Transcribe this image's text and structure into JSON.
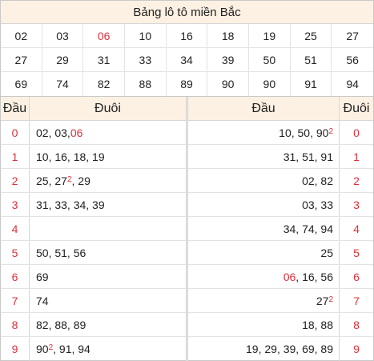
{
  "title": "Bảng lô tô miền Bắc",
  "numbers": [
    {
      "v": "02"
    },
    {
      "v": "03"
    },
    {
      "v": "06",
      "hl": true
    },
    {
      "v": "10"
    },
    {
      "v": "16"
    },
    {
      "v": "18"
    },
    {
      "v": "19"
    },
    {
      "v": "25"
    },
    {
      "v": "27"
    },
    {
      "v": "27"
    },
    {
      "v": "29"
    },
    {
      "v": "31"
    },
    {
      "v": "33"
    },
    {
      "v": "34"
    },
    {
      "v": "39"
    },
    {
      "v": "50"
    },
    {
      "v": "51"
    },
    {
      "v": "56"
    },
    {
      "v": "69"
    },
    {
      "v": "74"
    },
    {
      "v": "82"
    },
    {
      "v": "88"
    },
    {
      "v": "89"
    },
    {
      "v": "90"
    },
    {
      "v": "90"
    },
    {
      "v": "91"
    },
    {
      "v": "94"
    }
  ],
  "left_table": {
    "head_label": "Đầu",
    "tail_label": "Đuôi",
    "rows": [
      {
        "head": "0",
        "tail": [
          {
            "t": "02, 03, "
          },
          {
            "t": "06",
            "red": true
          }
        ]
      },
      {
        "head": "1",
        "tail": [
          {
            "t": "10, 16, 18, 19"
          }
        ]
      },
      {
        "head": "2",
        "tail": [
          {
            "t": "25, 27"
          },
          {
            "sup": "2"
          },
          {
            "t": ", 29"
          }
        ]
      },
      {
        "head": "3",
        "tail": [
          {
            "t": "31, 33, 34, 39"
          }
        ]
      },
      {
        "head": "4",
        "tail": []
      },
      {
        "head": "5",
        "tail": [
          {
            "t": "50, 51, 56"
          }
        ]
      },
      {
        "head": "6",
        "tail": [
          {
            "t": "69"
          }
        ]
      },
      {
        "head": "7",
        "tail": [
          {
            "t": "74"
          }
        ]
      },
      {
        "head": "8",
        "tail": [
          {
            "t": "82, 88, 89"
          }
        ]
      },
      {
        "head": "9",
        "tail": [
          {
            "t": "90"
          },
          {
            "sup": "2"
          },
          {
            "t": ", 91, 94"
          }
        ]
      }
    ]
  },
  "right_table": {
    "head_label": "Đầu",
    "tail_label": "Đuôi",
    "rows": [
      {
        "tail": "0",
        "head": [
          {
            "t": "10, 50, 90"
          },
          {
            "sup": "2"
          }
        ]
      },
      {
        "tail": "1",
        "head": [
          {
            "t": "31, 51, 91"
          }
        ]
      },
      {
        "tail": "2",
        "head": [
          {
            "t": "02, 82"
          }
        ]
      },
      {
        "tail": "3",
        "head": [
          {
            "t": "03, 33"
          }
        ]
      },
      {
        "tail": "4",
        "head": [
          {
            "t": "34, 74, 94"
          }
        ]
      },
      {
        "tail": "5",
        "head": [
          {
            "t": "25"
          }
        ]
      },
      {
        "tail": "6",
        "head": [
          {
            "t": "06",
            "red": true
          },
          {
            "t": ", 16, 56"
          }
        ]
      },
      {
        "tail": "7",
        "head": [
          {
            "t": "27"
          },
          {
            "sup": "2"
          }
        ]
      },
      {
        "tail": "8",
        "head": [
          {
            "t": "18, 88"
          }
        ]
      },
      {
        "tail": "9",
        "head": [
          {
            "t": "19, 29, 39, 69, 89"
          }
        ]
      }
    ]
  },
  "colors": {
    "accent_red": "#e0303a",
    "header_bg": "#fdf1e3",
    "border": "#c9c9c9"
  }
}
